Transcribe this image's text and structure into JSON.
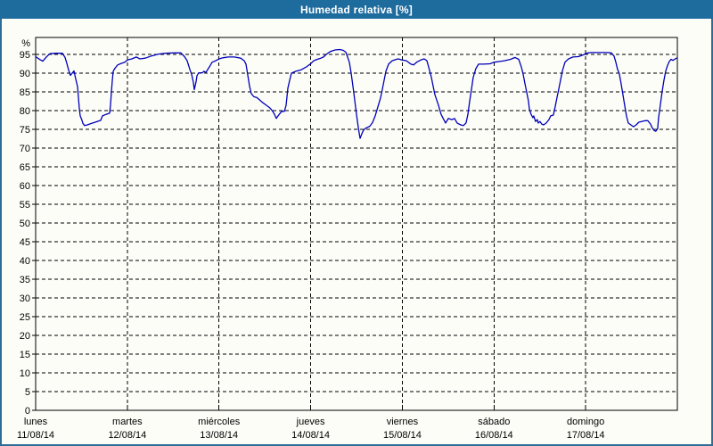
{
  "window": {
    "title": "Humedad relativa [%]",
    "titlebar_color": "#1e6b9e",
    "border_color": "#2e6d96",
    "background": "#fdfdf8"
  },
  "chart_data": {
    "type": "line",
    "title": "Humedad relativa [%]",
    "grid": {
      "style": "dashed",
      "color": "#000000",
      "horizontal_every": 5,
      "vertical_every_days": 1
    },
    "y_axis": {
      "unit_label": "%",
      "min": 0,
      "max": 99.5,
      "tick_step": 5,
      "ticks": [
        0,
        5,
        10,
        15,
        20,
        25,
        30,
        35,
        40,
        45,
        50,
        55,
        60,
        65,
        70,
        75,
        80,
        85,
        90,
        95
      ]
    },
    "x_axis": {
      "span_days": 7,
      "days": [
        {
          "name": "lunes",
          "date": "11/08/14"
        },
        {
          "name": "martes",
          "date": "12/08/14"
        },
        {
          "name": "miércoles",
          "date": "13/08/14"
        },
        {
          "name": "jueves",
          "date": "14/08/14"
        },
        {
          "name": "viernes",
          "date": "15/08/14"
        },
        {
          "name": "sábado",
          "date": "16/08/14"
        },
        {
          "name": "domingo",
          "date": "17/08/14"
        }
      ]
    },
    "series": [
      {
        "name": "Humedad relativa",
        "color": "#0000b8",
        "points": [
          [
            0.0,
            94.4
          ],
          [
            0.049,
            93.6
          ],
          [
            0.078,
            93.2
          ],
          [
            0.117,
            94.3
          ],
          [
            0.156,
            95.2
          ],
          [
            0.224,
            95.3
          ],
          [
            0.292,
            95.3
          ],
          [
            0.321,
            94.2
          ],
          [
            0.34,
            92.6
          ],
          [
            0.36,
            90.8
          ],
          [
            0.379,
            89.4
          ],
          [
            0.399,
            90.0
          ],
          [
            0.418,
            90.6
          ],
          [
            0.437,
            88.5
          ],
          [
            0.457,
            86.4
          ],
          [
            0.467,
            83.5
          ],
          [
            0.476,
            80.5
          ],
          [
            0.486,
            78.6
          ],
          [
            0.506,
            77.4
          ],
          [
            0.515,
            76.6
          ],
          [
            0.535,
            76.0
          ],
          [
            0.564,
            76.2
          ],
          [
            0.612,
            76.6
          ],
          [
            0.661,
            77.0
          ],
          [
            0.71,
            77.4
          ],
          [
            0.729,
            78.6
          ],
          [
            0.768,
            79.0
          ],
          [
            0.807,
            79.3
          ],
          [
            0.817,
            81.5
          ],
          [
            0.826,
            85.0
          ],
          [
            0.836,
            88.0
          ],
          [
            0.846,
            90.5
          ],
          [
            0.865,
            91.3
          ],
          [
            0.894,
            92.2
          ],
          [
            0.933,
            92.6
          ],
          [
            0.972,
            92.9
          ],
          [
            1.001,
            93.5
          ],
          [
            1.05,
            93.8
          ],
          [
            1.099,
            94.3
          ],
          [
            1.137,
            93.8
          ],
          [
            1.196,
            94.0
          ],
          [
            1.264,
            94.6
          ],
          [
            1.342,
            95.1
          ],
          [
            1.42,
            95.3
          ],
          [
            1.507,
            95.4
          ],
          [
            1.585,
            95.4
          ],
          [
            1.624,
            94.4
          ],
          [
            1.653,
            93.3
          ],
          [
            1.682,
            91.0
          ],
          [
            1.701,
            89.7
          ],
          [
            1.721,
            87.5
          ],
          [
            1.731,
            85.6
          ],
          [
            1.75,
            87.7
          ],
          [
            1.76,
            89.3
          ],
          [
            1.779,
            90.1
          ],
          [
            1.818,
            90.1
          ],
          [
            1.837,
            90.5
          ],
          [
            1.857,
            90.2
          ],
          [
            1.896,
            91.7
          ],
          [
            1.925,
            92.9
          ],
          [
            1.964,
            93.3
          ],
          [
            2.003,
            93.8
          ],
          [
            2.042,
            94.1
          ],
          [
            2.1,
            94.3
          ],
          [
            2.168,
            94.3
          ],
          [
            2.236,
            94.0
          ],
          [
            2.275,
            93.3
          ],
          [
            2.294,
            92.4
          ],
          [
            2.314,
            89.5
          ],
          [
            2.333,
            86.5
          ],
          [
            2.353,
            84.5
          ],
          [
            2.382,
            83.7
          ],
          [
            2.411,
            83.5
          ],
          [
            2.44,
            82.9
          ],
          [
            2.479,
            82.1
          ],
          [
            2.518,
            81.4
          ],
          [
            2.557,
            80.7
          ],
          [
            2.586,
            79.8
          ],
          [
            2.606,
            79.0
          ],
          [
            2.625,
            77.9
          ],
          [
            2.644,
            78.6
          ],
          [
            2.683,
            79.8
          ],
          [
            2.713,
            79.8
          ],
          [
            2.732,
            81.4
          ],
          [
            2.751,
            86.0
          ],
          [
            2.771,
            88.1
          ],
          [
            2.79,
            90.0
          ],
          [
            2.839,
            90.5
          ],
          [
            2.897,
            90.9
          ],
          [
            2.955,
            91.7
          ],
          [
            3.004,
            92.6
          ],
          [
            3.033,
            93.3
          ],
          [
            3.072,
            93.7
          ],
          [
            3.111,
            94.0
          ],
          [
            3.14,
            94.3
          ],
          [
            3.169,
            95.0
          ],
          [
            3.218,
            95.8
          ],
          [
            3.267,
            96.2
          ],
          [
            3.315,
            96.3
          ],
          [
            3.354,
            96.1
          ],
          [
            3.383,
            95.6
          ],
          [
            3.403,
            94.3
          ],
          [
            3.422,
            92.9
          ],
          [
            3.442,
            90.0
          ],
          [
            3.461,
            86.5
          ],
          [
            3.48,
            83.0
          ],
          [
            3.5,
            79.0
          ],
          [
            3.519,
            75.5
          ],
          [
            3.539,
            72.6
          ],
          [
            3.558,
            73.8
          ],
          [
            3.577,
            74.8
          ],
          [
            3.607,
            75.4
          ],
          [
            3.645,
            75.8
          ],
          [
            3.675,
            76.8
          ],
          [
            3.704,
            78.6
          ],
          [
            3.733,
            81.0
          ],
          [
            3.762,
            83.3
          ],
          [
            3.782,
            85.7
          ],
          [
            3.801,
            88.1
          ],
          [
            3.821,
            90.5
          ],
          [
            3.85,
            92.4
          ],
          [
            3.889,
            93.3
          ],
          [
            3.937,
            93.7
          ],
          [
            3.957,
            93.8
          ],
          [
            3.996,
            93.5
          ],
          [
            4.044,
            93.3
          ],
          [
            4.093,
            92.4
          ],
          [
            4.122,
            92.2
          ],
          [
            4.161,
            93.0
          ],
          [
            4.2,
            93.5
          ],
          [
            4.238,
            93.8
          ],
          [
            4.268,
            93.3
          ],
          [
            4.287,
            91.7
          ],
          [
            4.316,
            89.0
          ],
          [
            4.355,
            84.3
          ],
          [
            4.394,
            81.4
          ],
          [
            4.423,
            79.0
          ],
          [
            4.452,
            77.6
          ],
          [
            4.472,
            76.7
          ],
          [
            4.501,
            77.9
          ],
          [
            4.54,
            77.6
          ],
          [
            4.569,
            77.9
          ],
          [
            4.598,
            76.7
          ],
          [
            4.637,
            76.2
          ],
          [
            4.666,
            76.0
          ],
          [
            4.695,
            76.7
          ],
          [
            4.715,
            79.0
          ],
          [
            4.734,
            82.4
          ],
          [
            4.754,
            85.7
          ],
          [
            4.773,
            88.8
          ],
          [
            4.802,
            91.2
          ],
          [
            4.831,
            92.4
          ],
          [
            4.89,
            92.4
          ],
          [
            4.958,
            92.5
          ],
          [
            4.996,
            92.9
          ],
          [
            5.055,
            93.1
          ],
          [
            5.113,
            93.3
          ],
          [
            5.181,
            93.7
          ],
          [
            5.23,
            94.2
          ],
          [
            5.269,
            93.7
          ],
          [
            5.298,
            91.7
          ],
          [
            5.317,
            89.8
          ],
          [
            5.337,
            87.3
          ],
          [
            5.356,
            85.0
          ],
          [
            5.375,
            82.6
          ],
          [
            5.385,
            80.5
          ],
          [
            5.405,
            79.0
          ],
          [
            5.424,
            78.1
          ],
          [
            5.434,
            78.6
          ],
          [
            5.453,
            77.1
          ],
          [
            5.473,
            77.6
          ],
          [
            5.482,
            76.7
          ],
          [
            5.502,
            77.1
          ],
          [
            5.521,
            76.4
          ],
          [
            5.541,
            76.2
          ],
          [
            5.57,
            76.7
          ],
          [
            5.599,
            77.6
          ],
          [
            5.618,
            78.6
          ],
          [
            5.648,
            78.8
          ],
          [
            5.667,
            81.0
          ],
          [
            5.686,
            83.3
          ],
          [
            5.706,
            85.7
          ],
          [
            5.725,
            88.1
          ],
          [
            5.745,
            90.5
          ],
          [
            5.774,
            92.9
          ],
          [
            5.813,
            93.8
          ],
          [
            5.861,
            94.3
          ],
          [
            5.92,
            94.4
          ],
          [
            5.968,
            94.8
          ],
          [
            6.007,
            95.3
          ],
          [
            6.056,
            95.5
          ],
          [
            6.143,
            95.5
          ],
          [
            6.231,
            95.5
          ],
          [
            6.28,
            95.4
          ],
          [
            6.309,
            94.6
          ],
          [
            6.328,
            93.0
          ],
          [
            6.348,
            91.0
          ],
          [
            6.367,
            89.8
          ],
          [
            6.386,
            87.3
          ],
          [
            6.406,
            84.3
          ],
          [
            6.425,
            81.4
          ],
          [
            6.445,
            78.6
          ],
          [
            6.464,
            76.7
          ],
          [
            6.493,
            76.2
          ],
          [
            6.522,
            75.7
          ],
          [
            6.551,
            76.2
          ],
          [
            6.58,
            76.9
          ],
          [
            6.61,
            77.1
          ],
          [
            6.649,
            77.3
          ],
          [
            6.678,
            77.3
          ],
          [
            6.707,
            76.4
          ],
          [
            6.726,
            75.4
          ],
          [
            6.746,
            74.7
          ],
          [
            6.765,
            74.5
          ],
          [
            6.785,
            75.2
          ],
          [
            6.795,
            78.0
          ],
          [
            6.814,
            81.5
          ],
          [
            6.834,
            85.0
          ],
          [
            6.853,
            88.0
          ],
          [
            6.873,
            90.5
          ],
          [
            6.892,
            92.0
          ],
          [
            6.912,
            93.1
          ],
          [
            6.931,
            93.7
          ],
          [
            6.951,
            93.4
          ],
          [
            6.97,
            93.7
          ],
          [
            6.99,
            94.0
          ]
        ]
      }
    ]
  }
}
